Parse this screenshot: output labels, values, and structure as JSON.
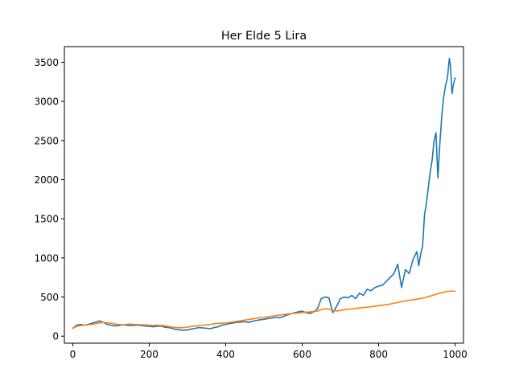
{
  "chart_data": {
    "type": "line",
    "title": "Her Elde 5 Lira",
    "xlabel": "",
    "ylabel": "",
    "xlim": [
      -22,
      1022
    ],
    "ylim": [
      -90,
      3700
    ],
    "xticks": [
      0,
      200,
      400,
      600,
      800,
      1000
    ],
    "yticks": [
      0,
      500,
      1000,
      1500,
      2000,
      2500,
      3000,
      3500
    ],
    "grid": false,
    "legend": "none",
    "series": [
      {
        "color": "#1f77b4",
        "x": [
          0,
          10,
          20,
          30,
          40,
          50,
          60,
          70,
          80,
          90,
          100,
          110,
          120,
          130,
          140,
          150,
          160,
          170,
          180,
          190,
          200,
          210,
          220,
          230,
          240,
          250,
          260,
          270,
          280,
          290,
          300,
          310,
          320,
          330,
          340,
          350,
          360,
          370,
          380,
          390,
          400,
          410,
          420,
          430,
          440,
          450,
          460,
          470,
          480,
          490,
          500,
          510,
          520,
          530,
          540,
          550,
          560,
          570,
          580,
          590,
          600,
          610,
          620,
          630,
          640,
          650,
          660,
          670,
          680,
          690,
          700,
          710,
          720,
          730,
          740,
          750,
          760,
          770,
          780,
          790,
          800,
          810,
          820,
          830,
          840,
          850,
          860,
          870,
          880,
          890,
          900,
          905,
          910,
          915,
          920,
          925,
          930,
          935,
          940,
          945,
          950,
          955,
          960,
          965,
          970,
          975,
          980,
          985,
          988,
          992,
          995,
          1000
        ],
        "y": [
          100,
          140,
          150,
          140,
          150,
          165,
          180,
          195,
          175,
          150,
          140,
          130,
          135,
          145,
          140,
          135,
          138,
          142,
          135,
          130,
          125,
          120,
          125,
          130,
          115,
          110,
          100,
          85,
          80,
          75,
          80,
          90,
          100,
          110,
          105,
          100,
          95,
          110,
          120,
          140,
          150,
          160,
          170,
          175,
          180,
          185,
          175,
          190,
          200,
          210,
          215,
          225,
          230,
          240,
          235,
          250,
          270,
          285,
          300,
          310,
          320,
          300,
          290,
          310,
          350,
          480,
          500,
          490,
          300,
          380,
          480,
          500,
          490,
          520,
          480,
          550,
          520,
          600,
          580,
          620,
          640,
          650,
          700,
          750,
          800,
          920,
          620,
          850,
          800,
          980,
          1080,
          900,
          1050,
          1150,
          1550,
          1700,
          1900,
          2100,
          2250,
          2500,
          2600,
          2020,
          2450,
          2800,
          3050,
          3200,
          3300,
          3550,
          3450,
          3100,
          3200,
          3300
        ]
      },
      {
        "color": "#ff7f0e",
        "x": [
          0,
          10,
          20,
          30,
          40,
          50,
          60,
          70,
          80,
          90,
          100,
          110,
          120,
          130,
          140,
          150,
          160,
          170,
          180,
          190,
          200,
          210,
          220,
          230,
          240,
          250,
          260,
          270,
          280,
          290,
          300,
          310,
          320,
          330,
          340,
          350,
          360,
          370,
          380,
          390,
          400,
          410,
          420,
          430,
          440,
          450,
          460,
          470,
          480,
          490,
          500,
          510,
          520,
          530,
          540,
          550,
          560,
          570,
          580,
          590,
          600,
          610,
          620,
          630,
          640,
          650,
          660,
          670,
          680,
          690,
          700,
          710,
          720,
          730,
          740,
          750,
          760,
          770,
          780,
          790,
          800,
          810,
          820,
          830,
          840,
          850,
          860,
          870,
          880,
          890,
          900,
          910,
          920,
          930,
          940,
          950,
          960,
          970,
          980,
          990,
          1000
        ],
        "y": [
          100,
          125,
          135,
          140,
          145,
          150,
          160,
          170,
          175,
          170,
          165,
          155,
          150,
          145,
          150,
          155,
          150,
          148,
          145,
          145,
          140,
          138,
          140,
          138,
          132,
          125,
          115,
          110,
          108,
          110,
          115,
          125,
          130,
          135,
          140,
          145,
          150,
          158,
          162,
          165,
          168,
          175,
          182,
          190,
          198,
          205,
          212,
          220,
          228,
          235,
          240,
          248,
          255,
          262,
          268,
          275,
          282,
          288,
          292,
          296,
          300,
          305,
          310,
          315,
          320,
          340,
          350,
          345,
          330,
          320,
          330,
          338,
          343,
          348,
          355,
          360,
          365,
          370,
          376,
          382,
          388,
          395,
          402,
          410,
          420,
          430,
          440,
          450,
          458,
          465,
          472,
          480,
          490,
          505,
          520,
          535,
          550,
          560,
          570,
          575,
          575
        ]
      }
    ]
  }
}
